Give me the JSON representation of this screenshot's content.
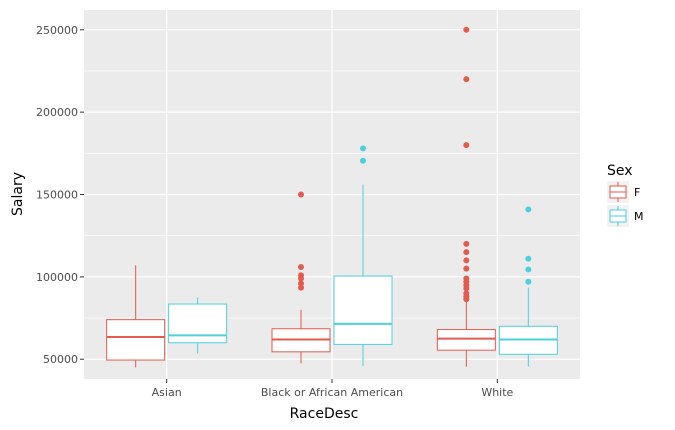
{
  "chart_data": {
    "type": "boxplot",
    "xlabel": "RaceDesc",
    "ylabel": "Salary",
    "categories": [
      "Asian",
      "Black or African American",
      "White"
    ],
    "ylim": [
      38000,
      262000
    ],
    "yticks": [
      50000,
      100000,
      150000,
      200000,
      250000
    ],
    "ytick_labels": [
      "50000",
      "100000",
      "150000",
      "200000",
      "250000"
    ],
    "grid": true,
    "background": "#EBEBEB",
    "legend": {
      "title": "Sex",
      "position": "right",
      "entries": [
        {
          "label": "F",
          "color": "#E15B4E"
        },
        {
          "label": "M",
          "color": "#4DD0DB"
        }
      ]
    },
    "series": [
      {
        "name": "F",
        "color": "#E15B4E",
        "boxes": [
          {
            "category": "Asian",
            "whisker_low": 45000,
            "q1": 49500,
            "median": 63500,
            "q3": 74000,
            "whisker_high": 107000,
            "outliers": []
          },
          {
            "category": "Black or African American",
            "whisker_low": 47500,
            "q1": 54500,
            "median": 62000,
            "q3": 68500,
            "whisker_high": 80000,
            "outliers": [
              93500,
              96000,
              99000,
              101000,
              106000,
              150000
            ]
          },
          {
            "category": "White",
            "whisker_low": 45500,
            "q1": 55500,
            "median": 62500,
            "q3": 68000,
            "whisker_high": 85000,
            "outliers": [
              86500,
              88000,
              90000,
              93000,
              95000,
              97000,
              99000,
              105000,
              110000,
              115000,
              120000,
              180000,
              220000,
              250000
            ]
          }
        ]
      },
      {
        "name": "M",
        "color": "#4DD0DB",
        "boxes": [
          {
            "category": "Asian",
            "whisker_low": 53500,
            "q1": 60000,
            "median": 64500,
            "q3": 83500,
            "whisker_high": 87500,
            "outliers": []
          },
          {
            "category": "Black or African American",
            "whisker_low": 46000,
            "q1": 59000,
            "median": 71500,
            "q3": 100500,
            "whisker_high": 156000,
            "outliers": [
              170500,
              178000
            ]
          },
          {
            "category": "White",
            "whisker_low": 45500,
            "q1": 53000,
            "median": 62000,
            "q3": 70000,
            "whisker_high": 93500,
            "outliers": [
              97000,
              104500,
              111000,
              141000
            ]
          }
        ]
      }
    ]
  }
}
